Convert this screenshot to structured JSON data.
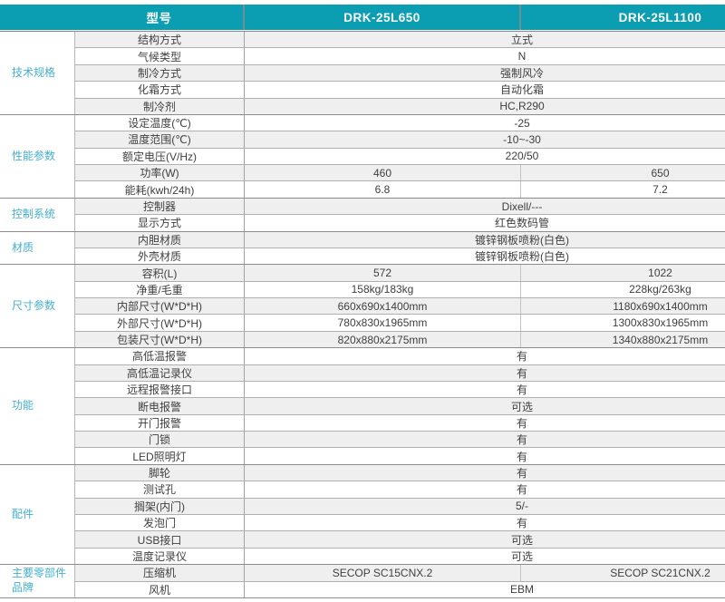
{
  "header": {
    "model_label": "型号",
    "models": [
      "DRK-25L650",
      "DRK-25L1100"
    ]
  },
  "colors": {
    "header_bg": "#0b9eb3",
    "category_text": "#44b0ce",
    "stripe_gray": "#efefef"
  },
  "sections": [
    {
      "category": "技术规格",
      "rows": [
        {
          "label": "结构方式",
          "value": "立式"
        },
        {
          "label": "气候类型",
          "value": "N"
        },
        {
          "label": "制冷方式",
          "value": "强制风冷"
        },
        {
          "label": "化霜方式",
          "value": "自动化霜"
        },
        {
          "label": "制冷剂",
          "value": "HC,R290"
        }
      ]
    },
    {
      "category": "性能参数",
      "rows": [
        {
          "label": "设定温度(℃)",
          "value": "-25"
        },
        {
          "label": "温度范围(℃)",
          "value": "-10~-30"
        },
        {
          "label": "额定电压(V/Hz)",
          "value": "220/50"
        },
        {
          "label": "功率(W)",
          "v1": "460",
          "v2": "650"
        },
        {
          "label": "能耗(kwh/24h)",
          "v1": "6.8",
          "v2": "7.2"
        }
      ]
    },
    {
      "category": "控制系统",
      "rows": [
        {
          "label": "控制器",
          "value": "Dixell/---"
        },
        {
          "label": "显示方式",
          "value": "红色数码管"
        }
      ]
    },
    {
      "category": "材质",
      "rows": [
        {
          "label": "内胆材质",
          "value": "镀锌钢板喷粉(白色)"
        },
        {
          "label": "外壳材质",
          "value": "镀锌钢板喷粉(白色)"
        }
      ]
    },
    {
      "category": "尺寸参数",
      "rows": [
        {
          "label": "容积(L)",
          "v1": "572",
          "v2": "1022"
        },
        {
          "label": "净重/毛重",
          "v1": "158kg/183kg",
          "v2": "228kg/263kg"
        },
        {
          "label": "内部尺寸(W*D*H)",
          "v1": "660x690x1400mm",
          "v2": "1180x690x1400mm"
        },
        {
          "label": "外部尺寸(W*D*H)",
          "v1": "780x830x1965mm",
          "v2": "1300x830x1965mm"
        },
        {
          "label": "包装尺寸(W*D*H)",
          "v1": "820x880x2175mm",
          "v2": "1340x880x2175mm"
        }
      ]
    },
    {
      "category": "功能",
      "rows": [
        {
          "label": "高低温报警",
          "value": "有"
        },
        {
          "label": "高低温记录仪",
          "value": "有"
        },
        {
          "label": "远程报警接口",
          "value": "有"
        },
        {
          "label": "断电报警",
          "value": "可选"
        },
        {
          "label": "开门报警",
          "value": "有"
        },
        {
          "label": "门锁",
          "value": "有"
        },
        {
          "label": "LED照明灯",
          "value": "有"
        }
      ]
    },
    {
      "category": "配件",
      "rows": [
        {
          "label": "脚轮",
          "value": "有"
        },
        {
          "label": "测试孔",
          "value": "有"
        },
        {
          "label": "搁架(内门)",
          "value": "5/-"
        },
        {
          "label": "发泡门",
          "value": "有"
        },
        {
          "label": "USB接口",
          "value": "可选"
        },
        {
          "label": "温度记录仪",
          "value": "可选"
        }
      ]
    },
    {
      "category": "主要零部件品牌",
      "rows": [
        {
          "label": "压缩机",
          "v1": "SECOP SC15CNX.2",
          "v2": "SECOP SC21CNX.2"
        },
        {
          "label": "风机",
          "value": "EBM"
        }
      ]
    }
  ]
}
